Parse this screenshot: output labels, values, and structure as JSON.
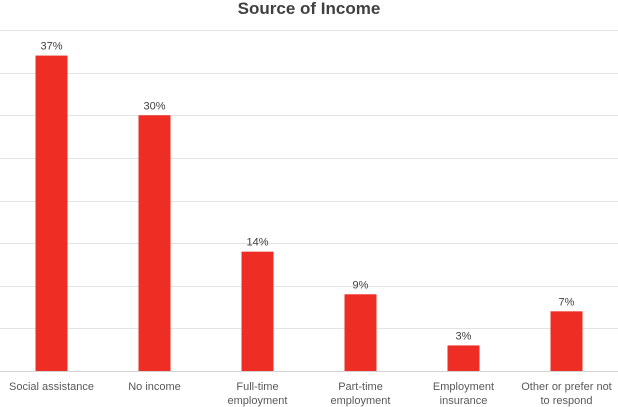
{
  "chart_data": {
    "type": "bar",
    "title": "Source of Income",
    "categories": [
      [
        "Social assistance"
      ],
      [
        "No income"
      ],
      [
        "Full-time",
        "employment"
      ],
      [
        "Part-time",
        "employment"
      ],
      [
        "Employment",
        "insurance"
      ],
      [
        "Other or prefer not",
        "to respond"
      ]
    ],
    "values": [
      37,
      30,
      14,
      9,
      3,
      7
    ],
    "data_labels": [
      "37%",
      "30%",
      "14%",
      "9%",
      "3%",
      "7%"
    ],
    "ylim": [
      0,
      40
    ],
    "y_gridline_step": 5,
    "grid": true,
    "y_tick_labels_shown": false,
    "legend": "none",
    "bar_color": "#ee2e24"
  }
}
